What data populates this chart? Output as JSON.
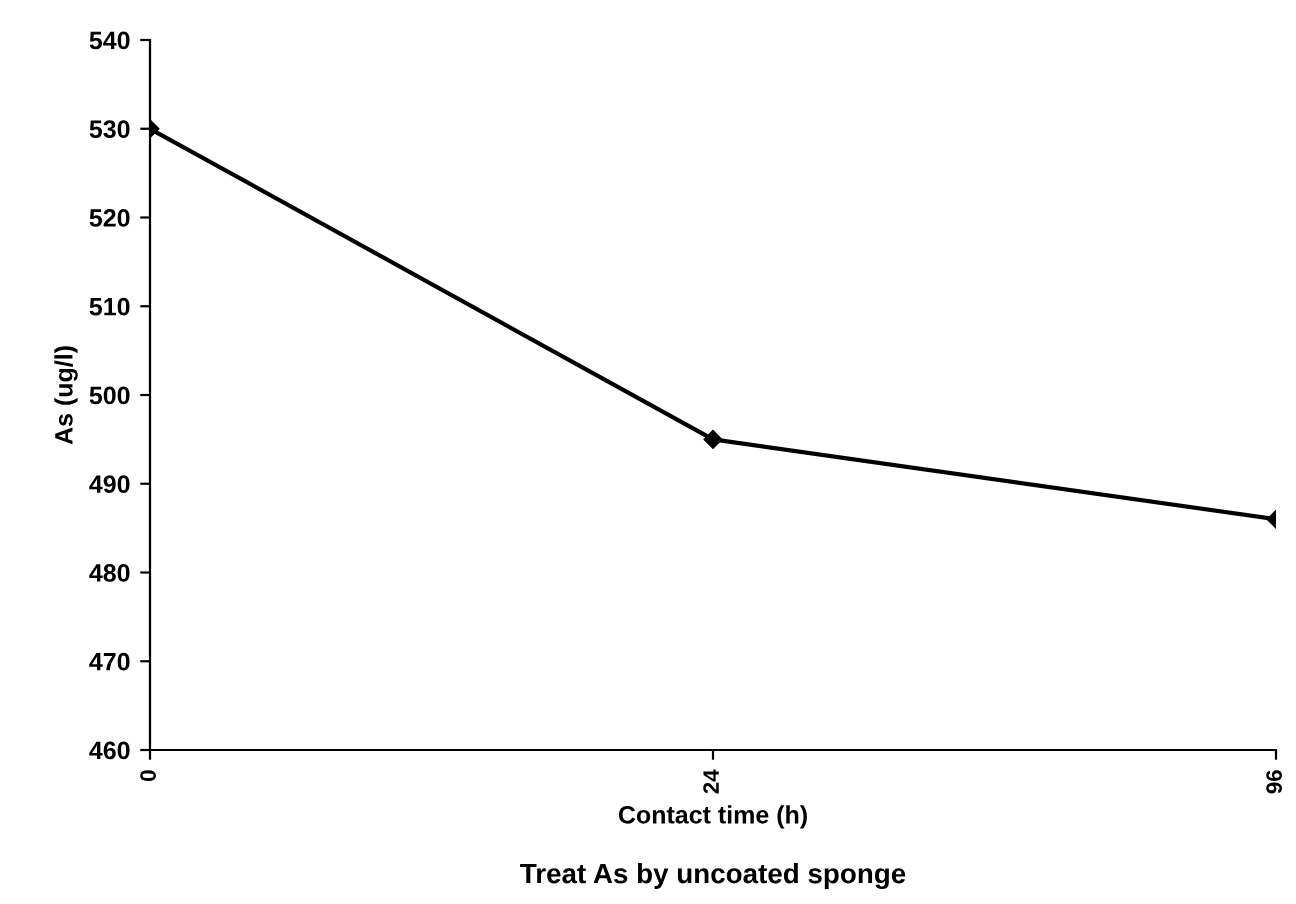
{
  "chart_data": {
    "type": "line",
    "title": "Treat As by uncoated sponge",
    "xlabel": "Contact time (h)",
    "ylabel": "As (ug/l)",
    "categories": [
      "0",
      "24",
      "96"
    ],
    "series": [
      {
        "color": "#000000",
        "values": [
          530,
          495,
          486
        ]
      }
    ],
    "ylim": [
      460,
      540
    ],
    "yticks": [
      460,
      470,
      480,
      490,
      500,
      510,
      520,
      530,
      540
    ],
    "marker": "diamond",
    "line_style": "solid",
    "grid": false
  }
}
